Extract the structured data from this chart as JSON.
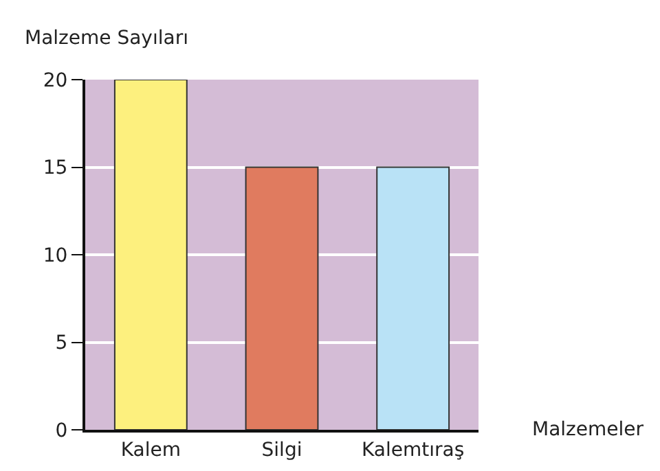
{
  "chart_data": {
    "type": "bar",
    "xlabel": "Malzemeler",
    "ylabel": "Malzeme Sayıları",
    "categories": [
      "Kalem",
      "Silgi",
      "Kalemtıraş"
    ],
    "values": [
      20,
      15,
      15
    ],
    "colors": [
      "#fdf07e",
      "#e07b5f",
      "#b9e2f6"
    ],
    "ylim": [
      0,
      20
    ],
    "yticks": [
      0,
      5,
      10,
      15,
      20
    ],
    "grid": "y"
  }
}
